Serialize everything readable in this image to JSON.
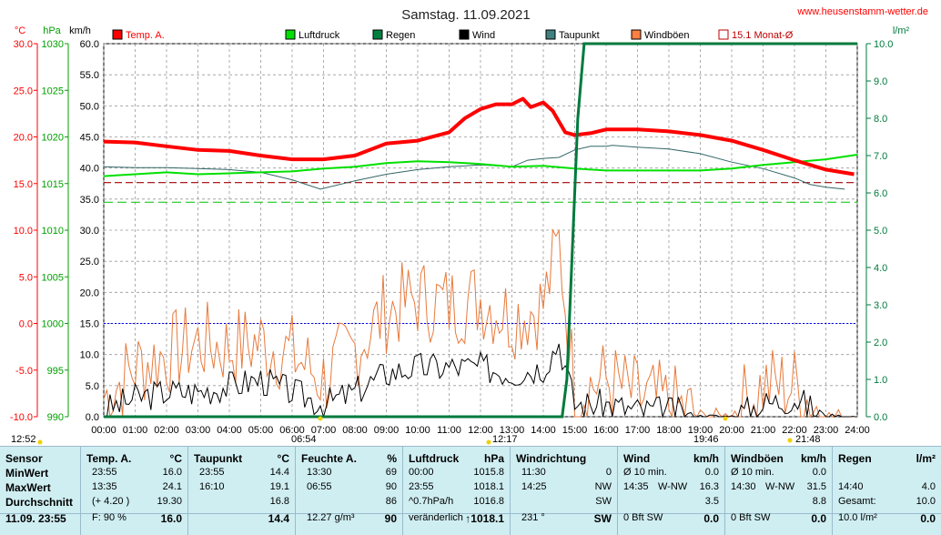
{
  "title": "Samstag. 11.09.2021",
  "website": "www.heusenstamm-wetter.de",
  "units": {
    "temp": "°C",
    "pressure": "hPa",
    "wind": "km/h",
    "rain": "l/m²"
  },
  "legend": [
    {
      "label": "Temp. A.",
      "color": "#ff0000",
      "style": "fill"
    },
    {
      "label": "",
      "color": "#ffffff",
      "style": "box"
    },
    {
      "label": "Luftdruck",
      "color": "#00e000",
      "style": "fill"
    },
    {
      "label": "Regen",
      "color": "#008040",
      "style": "fill"
    },
    {
      "label": "Wind",
      "color": "#000000",
      "style": "fill"
    },
    {
      "label": "Taupunkt",
      "color": "#408080",
      "style": "fill"
    },
    {
      "label": "Windböen",
      "color": "#ff8040",
      "style": "fill"
    },
    {
      "label": "15.1 Monat-Ø",
      "color": "#c00000",
      "style": "box"
    }
  ],
  "colors": {
    "temp": "#ff0000",
    "pressure": "#00e000",
    "rain": "#007a3d",
    "wind": "#000000",
    "dew": "#336666",
    "gust": "#e87a3c",
    "avg": "#a00000",
    "zeroline": "#0000ff"
  },
  "axes": {
    "temp_ticks": [
      "30.0",
      "25.0",
      "20.0",
      "15.0",
      "10.0",
      "5.0",
      "0.0",
      "-5.0",
      "-10.0"
    ],
    "pressure_ticks": [
      "1030",
      "1025",
      "1020",
      "1015",
      "1010",
      "1005",
      "1000",
      "995",
      "990"
    ],
    "wind_ticks": [
      "60.0",
      "55.0",
      "50.0",
      "45.0",
      "40.0",
      "35.0",
      "30.0",
      "25.0",
      "20.0",
      "15.0",
      "10.0",
      "5.0",
      "0.0"
    ],
    "rain_ticks": [
      "10.0",
      "9.0",
      "8.0",
      "7.0",
      "6.0",
      "5.0",
      "4.0",
      "3.0",
      "2.0",
      "1.0",
      "0.0"
    ],
    "time_ticks": [
      "00:00",
      "01:00",
      "02:00",
      "03:00",
      "04:00",
      "05:00",
      "06:00",
      "07:00",
      "08:00",
      "09:00",
      "10:00",
      "11:00",
      "12:00",
      "13:00",
      "14:00",
      "15:00",
      "16:00",
      "17:00",
      "18:00",
      "19:00",
      "20:00",
      "21:00",
      "22:00",
      "23:00",
      "24:00"
    ],
    "markers": [
      "12:52",
      "06:54",
      "12:17",
      "19:46",
      "21:48"
    ]
  },
  "chart_data": {
    "type": "line",
    "x_unit": "hour",
    "xlim": [
      0,
      24
    ],
    "temp_ylim": [
      -10,
      30
    ],
    "wind_ylim": [
      0,
      60
    ],
    "rain_ylim": [
      0,
      10
    ],
    "series": [
      {
        "name": "Temp. A.",
        "axis": "temp",
        "x": [
          0,
          1,
          2,
          3,
          4,
          5,
          6,
          7,
          8,
          9,
          10,
          11,
          11.5,
          12,
          12.5,
          13,
          13.35,
          13.6,
          14,
          14.3,
          14.7,
          15,
          15.5,
          16,
          17,
          18,
          19,
          20,
          21,
          22,
          23,
          23.9
        ],
        "y": [
          19.5,
          19.4,
          19.0,
          18.6,
          18.5,
          18.0,
          17.6,
          17.6,
          18.0,
          19.3,
          19.6,
          20.5,
          22.0,
          23.0,
          23.5,
          23.5,
          24.1,
          23.2,
          23.7,
          22.8,
          20.5,
          20.2,
          20.4,
          20.8,
          20.8,
          20.6,
          20.2,
          19.6,
          18.6,
          17.5,
          16.5,
          16.0
        ]
      },
      {
        "name": "Luftdruck",
        "axis": "pressure",
        "x": [
          0,
          1,
          2,
          3,
          4,
          5,
          6,
          7,
          8,
          9,
          10,
          11,
          12,
          13,
          14,
          15,
          16,
          17,
          18,
          19,
          20,
          21,
          22,
          23,
          24
        ],
        "y": [
          1015.8,
          1016.0,
          1016.2,
          1016.0,
          1016.1,
          1016.2,
          1016.3,
          1016.6,
          1016.8,
          1017.2,
          1017.4,
          1017.3,
          1017.1,
          1016.8,
          1016.9,
          1016.6,
          1016.4,
          1016.4,
          1016.4,
          1016.4,
          1016.6,
          1017.0,
          1017.3,
          1017.6,
          1018.1
        ]
      },
      {
        "name": "Taupunkt",
        "axis": "temp",
        "x": [
          0,
          1,
          2,
          3,
          4,
          5,
          6,
          6.9,
          8,
          9,
          10,
          11,
          12,
          13,
          13.5,
          14,
          14.5,
          15,
          15.5,
          16,
          16.2,
          17,
          18,
          19,
          20,
          21,
          22,
          22.5,
          23,
          23.6
        ],
        "y": [
          16.8,
          16.7,
          16.7,
          16.6,
          16.5,
          16.2,
          15.4,
          14.4,
          15.3,
          16.0,
          16.5,
          16.8,
          17.0,
          16.8,
          17.5,
          17.7,
          17.8,
          18.6,
          19.0,
          19.0,
          19.1,
          18.9,
          18.7,
          18.2,
          17.3,
          16.6,
          15.6,
          14.9,
          14.6,
          14.4
        ]
      },
      {
        "name": "15.1 Monat-Ø",
        "axis": "temp",
        "x": [
          0,
          24
        ],
        "y": [
          15.1,
          15.1
        ]
      },
      {
        "name": "Regen",
        "axis": "rain",
        "x": [
          0,
          14.6,
          14.75,
          14.9,
          15.1,
          15.3,
          24
        ],
        "y": [
          0,
          0,
          1.0,
          4.0,
          8.0,
          10.0,
          10.0
        ]
      }
    ],
    "wind_profile": {
      "name": "Wind",
      "axis": "wind",
      "x": [
        0,
        1,
        2,
        3,
        4,
        5,
        6,
        7,
        8,
        9,
        10,
        11,
        12,
        13,
        14,
        14.5,
        15,
        16,
        17,
        18,
        19,
        20,
        21,
        22,
        23,
        24
      ],
      "y": [
        1,
        3,
        4,
        4,
        5,
        6,
        4,
        2,
        4,
        7,
        8,
        8,
        8,
        7,
        8,
        12,
        2,
        2,
        1,
        1,
        0,
        0,
        2,
        3,
        0,
        0
      ]
    },
    "gust_profile": {
      "name": "Windböen",
      "axis": "wind",
      "x": [
        0,
        1,
        2,
        3,
        4,
        5,
        6,
        7,
        8,
        9,
        10,
        11,
        12,
        13,
        14,
        14.5,
        15,
        16,
        17,
        18,
        19,
        20,
        21,
        22,
        23,
        24
      ],
      "y": [
        3,
        8,
        10,
        12,
        11,
        12,
        10,
        6,
        11,
        17,
        19,
        18,
        19,
        16,
        18,
        28,
        4,
        6,
        3,
        2,
        0,
        0,
        5,
        5,
        0,
        0
      ]
    }
  },
  "panel": {
    "sensor": {
      "header": "Sensor",
      "rows": [
        "MinWert",
        "MaxWert",
        "Durchschnitt",
        "11.09. 23:55"
      ]
    },
    "temp": {
      "header": "Temp. A.",
      "unit": "°C",
      "rows": [
        [
          "23:55",
          "16.0"
        ],
        [
          "13:35",
          "24.1"
        ],
        [
          "(+ 4.20 )",
          "19.30"
        ],
        [
          "F: 90 %",
          "16.0"
        ]
      ]
    },
    "dew": {
      "header": "Taupunkt",
      "unit": "°C",
      "rows": [
        [
          "23:55",
          "14.4"
        ],
        [
          "16:10",
          "19.1"
        ],
        [
          "",
          "16.8"
        ],
        [
          "",
          "14.4"
        ]
      ]
    },
    "hum": {
      "header": "Feuchte A.",
      "unit": "%",
      "rows": [
        [
          "13:30",
          "69"
        ],
        [
          "06:55",
          "90"
        ],
        [
          "",
          "86"
        ],
        [
          "12.27 g/m³",
          "90"
        ]
      ]
    },
    "press": {
      "header": "Luftdruck",
      "unit": "hPa",
      "rows": [
        [
          "00:00",
          "1015.8"
        ],
        [
          "23:55",
          "1018.1"
        ],
        [
          "^0.7hPa/h",
          "1016.8"
        ],
        [
          "veränderlich",
          "↑1018.1"
        ]
      ]
    },
    "dir": {
      "header": "Windrichtung",
      "rows": [
        [
          "11:30",
          "0"
        ],
        [
          "14:25",
          "NW"
        ],
        [
          "",
          "SW"
        ],
        [
          "231 °",
          "SW"
        ]
      ]
    },
    "wind": {
      "header": "Wind",
      "unit": "km/h",
      "rows": [
        [
          "Ø 10 min.",
          "",
          "0.0"
        ],
        [
          "14:35",
          "W-NW",
          "16.3"
        ],
        [
          "",
          "",
          "3.5"
        ],
        [
          "0 Bft SW",
          "",
          "0.0"
        ]
      ]
    },
    "gust": {
      "header": "Windböen",
      "unit": "km/h",
      "rows": [
        [
          "Ø 10 min.",
          "",
          "0.0"
        ],
        [
          "14:30",
          "W-NW",
          "31.5"
        ],
        [
          "",
          "",
          "8.8"
        ],
        [
          "0 Bft SW",
          "",
          "0.0"
        ]
      ]
    },
    "rain": {
      "header": "Regen",
      "unit": "l/m²",
      "rows": [
        [
          "",
          "",
          ""
        ],
        [
          "14:40",
          "",
          "4.0"
        ],
        [
          "Gesamt:",
          "",
          "10.0"
        ],
        [
          "10.0 l/m²",
          "",
          "0.0"
        ]
      ]
    }
  }
}
